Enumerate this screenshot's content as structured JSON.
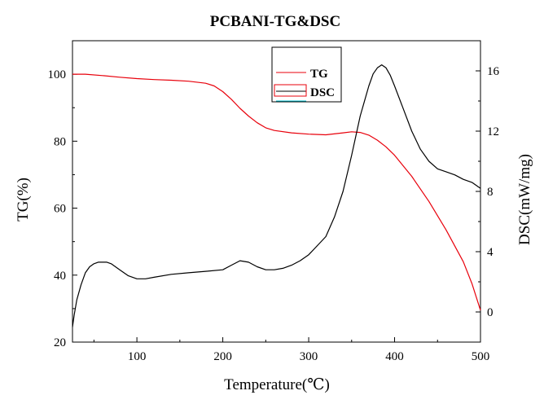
{
  "chart_data": {
    "type": "line",
    "title": "PCBANI-TG&DSC",
    "xlabel": "Temperature(℃)",
    "ylabel_left": "TG(%)",
    "ylabel_right": "DSC(mW/mg)",
    "xlim": [
      25,
      500
    ],
    "ylim_left": [
      20,
      110
    ],
    "ylim_right": [
      -2,
      18
    ],
    "x_ticks": [
      100,
      200,
      300,
      400,
      500
    ],
    "y_ticks_left": [
      20,
      40,
      60,
      80,
      100
    ],
    "y_ticks_right": [
      0,
      4,
      8,
      12,
      16
    ],
    "grid": false,
    "legend_position": "top-center",
    "series": [
      {
        "name": "TG",
        "axis": "left",
        "color": "#e8000b",
        "x": [
          25,
          40,
          60,
          80,
          100,
          120,
          140,
          160,
          180,
          190,
          200,
          210,
          220,
          230,
          240,
          250,
          260,
          280,
          300,
          320,
          340,
          350,
          360,
          370,
          380,
          390,
          400,
          420,
          440,
          460,
          480,
          490,
          500
        ],
        "y": [
          100,
          100,
          99.6,
          99.1,
          98.7,
          98.4,
          98.2,
          97.9,
          97.3,
          96.5,
          94.8,
          92.5,
          89.8,
          87.5,
          85.5,
          84.0,
          83.2,
          82.5,
          82.1,
          81.9,
          82.5,
          82.8,
          82.6,
          81.8,
          80.3,
          78.3,
          75.8,
          69.5,
          62.0,
          53.5,
          44.0,
          37.5,
          29.5
        ]
      },
      {
        "name": "DSC",
        "axis": "right",
        "color": "#000000",
        "x": [
          25,
          27,
          30,
          35,
          40,
          45,
          50,
          55,
          60,
          65,
          70,
          80,
          90,
          100,
          110,
          120,
          140,
          160,
          180,
          200,
          210,
          220,
          230,
          240,
          250,
          260,
          270,
          280,
          290,
          300,
          310,
          320,
          330,
          340,
          350,
          360,
          370,
          375,
          380,
          385,
          390,
          395,
          400,
          410,
          420,
          430,
          440,
          450,
          460,
          470,
          480,
          490,
          500
        ],
        "y": [
          -1.0,
          -0.2,
          0.8,
          1.8,
          2.6,
          3.0,
          3.2,
          3.3,
          3.3,
          3.3,
          3.2,
          2.8,
          2.4,
          2.2,
          2.2,
          2.3,
          2.5,
          2.6,
          2.7,
          2.8,
          3.1,
          3.4,
          3.3,
          3.0,
          2.8,
          2.8,
          2.9,
          3.1,
          3.4,
          3.8,
          4.4,
          5.0,
          6.3,
          8.0,
          10.4,
          13.0,
          15.0,
          15.8,
          16.2,
          16.4,
          16.2,
          15.7,
          15.0,
          13.5,
          12.0,
          10.8,
          10.0,
          9.5,
          9.3,
          9.1,
          8.8,
          8.6,
          8.2
        ]
      }
    ]
  }
}
